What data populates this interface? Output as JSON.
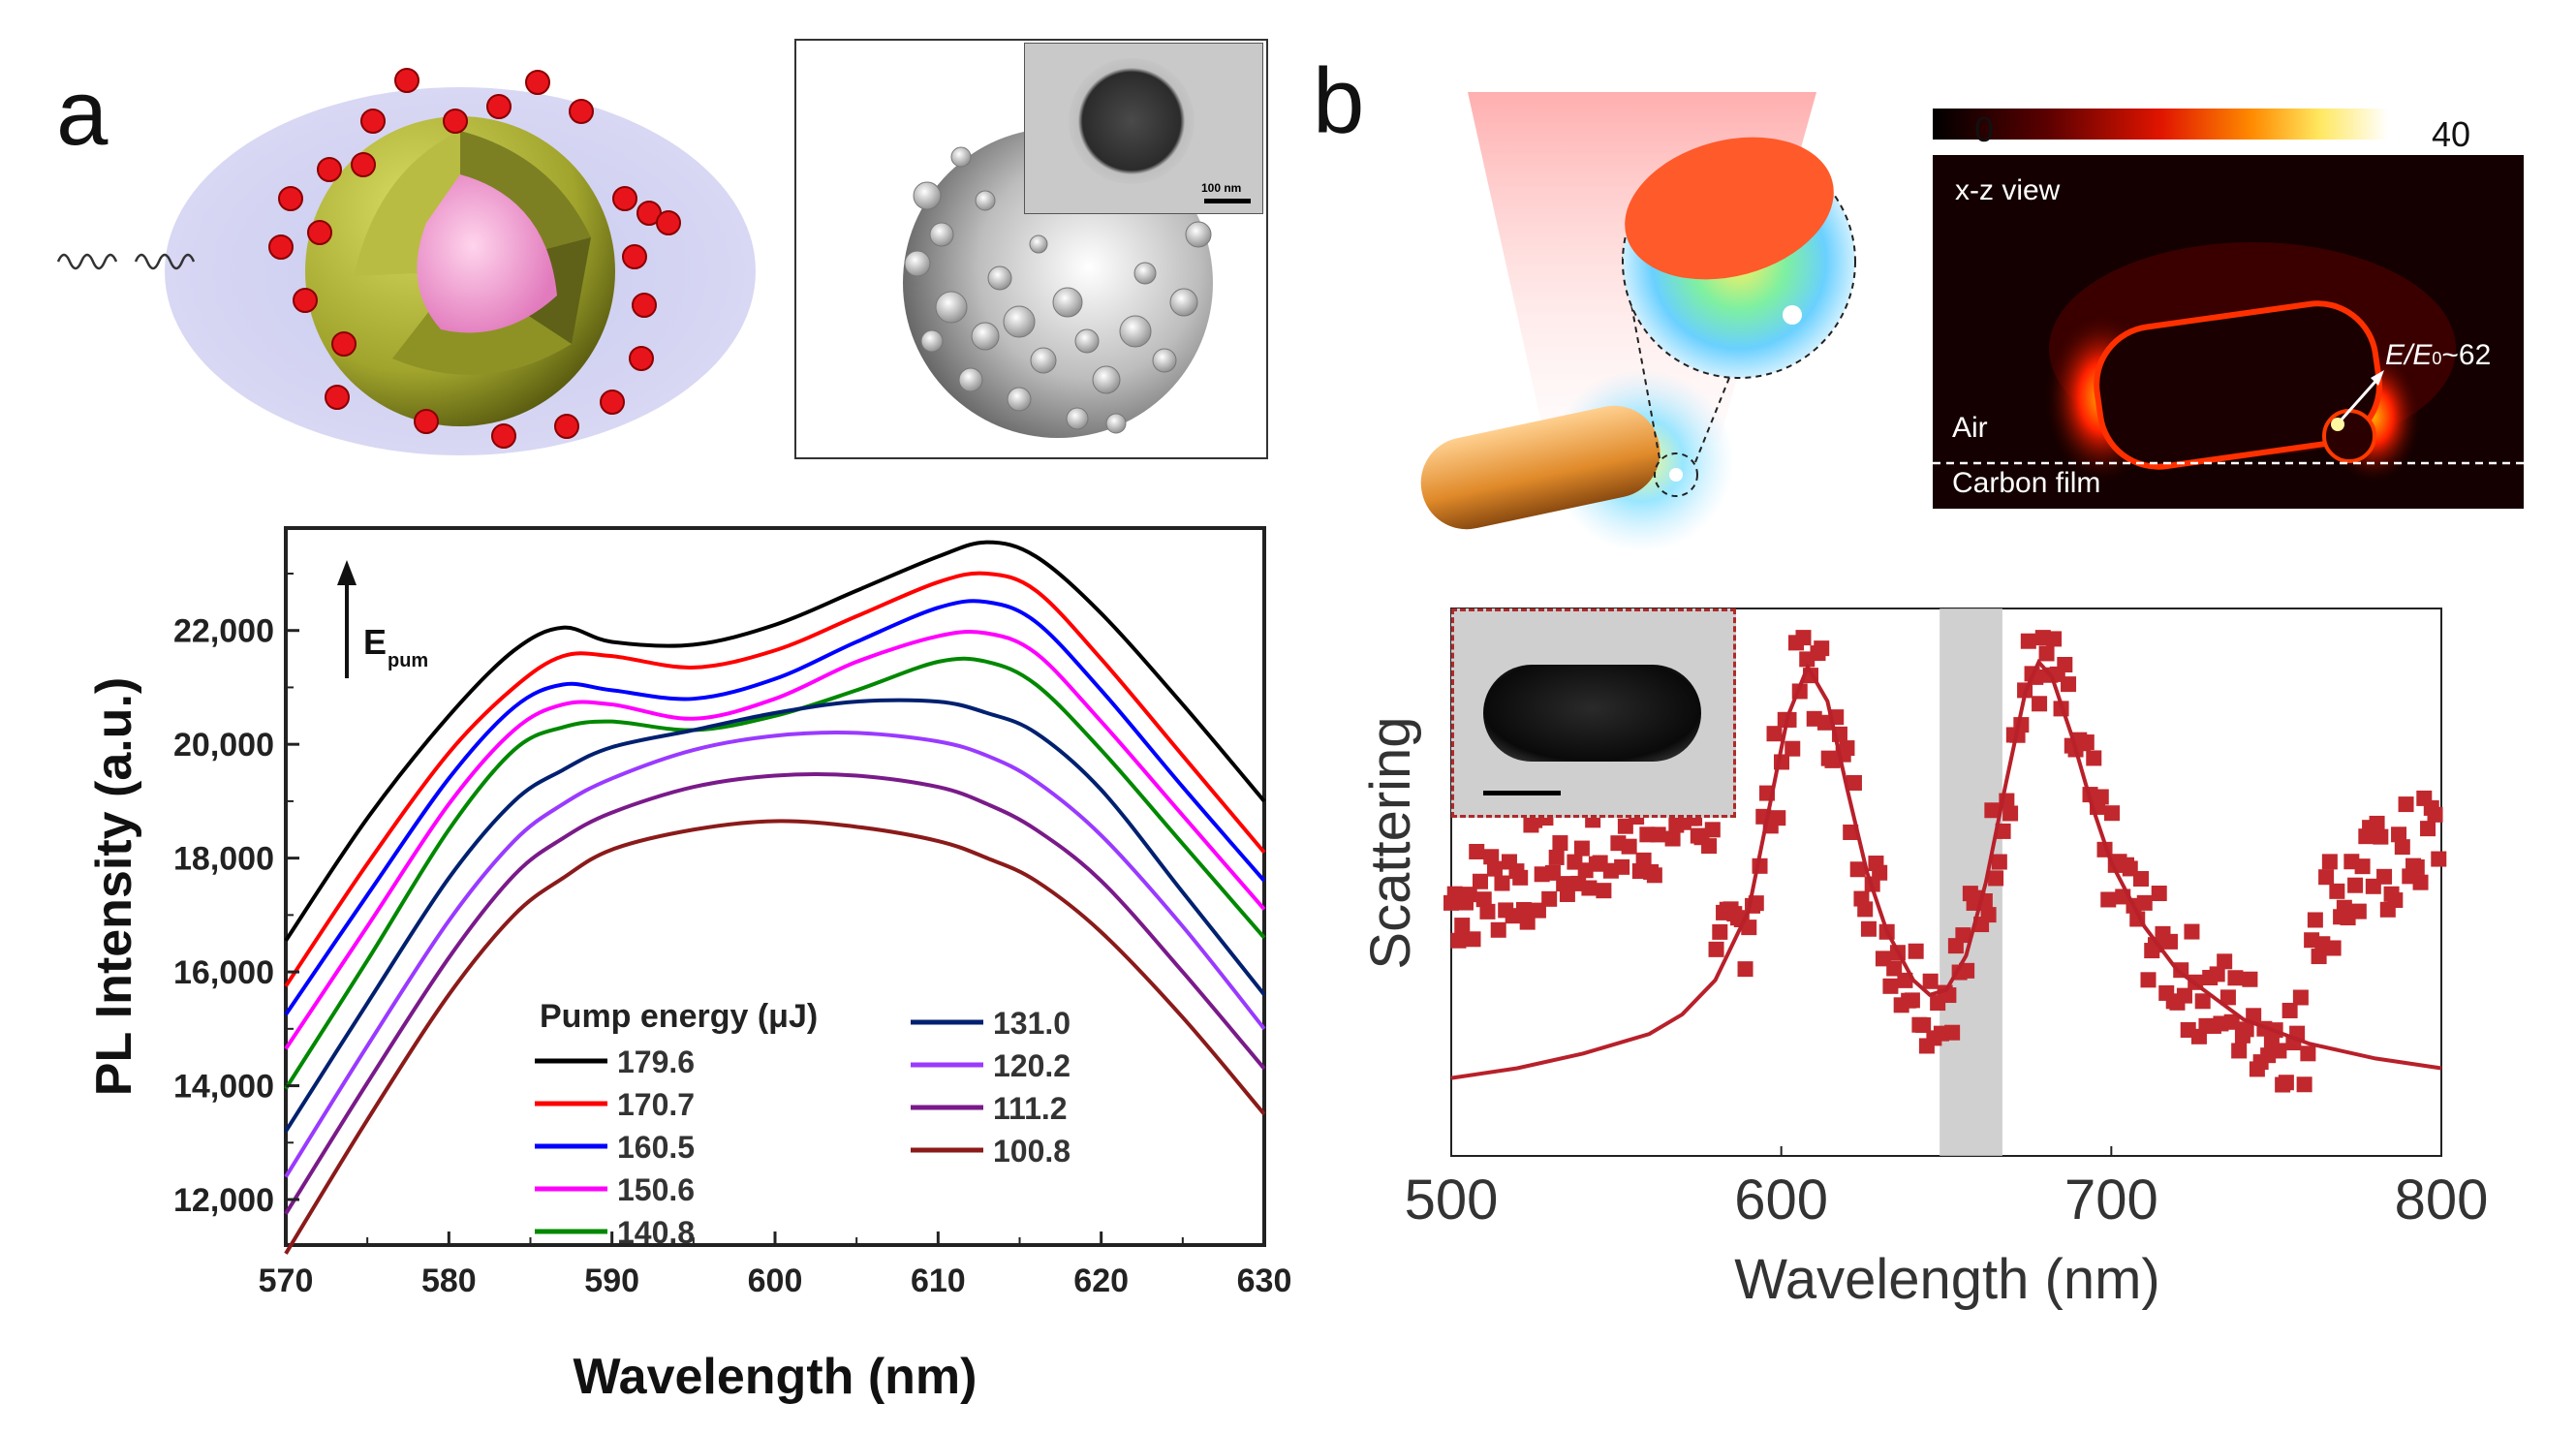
{
  "panels": {
    "a": {
      "letter": "a"
    },
    "b": {
      "letter": "b"
    }
  },
  "panel_a_top": {
    "tem_scale_label": "100 nm"
  },
  "panel_b_top": {
    "colorbar_min": "0",
    "colorbar_max": "40",
    "view_label": "x-z view",
    "field_label": "E/E",
    "field_subscript": "0",
    "field_value": "~62",
    "air_label": "Air",
    "film_label": "Carbon film",
    "colors": {
      "hot": "#ff3b00",
      "dark": "#1a0000"
    }
  },
  "chart_data": [
    {
      "type": "line",
      "xlabel": "Wavelength (nm)",
      "ylabel": "PL Intensity (a.u.)",
      "xlim": [
        570,
        630
      ],
      "ylim": [
        11200,
        23800
      ],
      "xticks": [
        "570",
        "580",
        "590",
        "600",
        "610",
        "620",
        "630"
      ],
      "xtick_values": [
        570,
        580,
        590,
        600,
        610,
        620,
        630
      ],
      "yticks": [
        "12,000",
        "14,000",
        "16,000",
        "18,000",
        "20,000",
        "22,000"
      ],
      "ytick_values": [
        12000,
        14000,
        16000,
        18000,
        20000,
        22000
      ],
      "arrow_label": "E",
      "arrow_label_sub": "pum",
      "legend_title": "Pump energy (μJ)",
      "x": [
        570,
        575,
        580,
        584,
        587,
        590,
        595,
        600,
        605,
        610,
        613,
        616,
        620,
        625,
        630
      ],
      "series": [
        {
          "name": "179.6",
          "color": "#000000",
          "values": [
            16550,
            18700,
            20500,
            21650,
            22050,
            21800,
            21750,
            22100,
            22700,
            23300,
            23550,
            23300,
            22300,
            20700,
            19000
          ]
        },
        {
          "name": "170.7",
          "color": "#ff0000",
          "values": [
            15750,
            17900,
            19850,
            21000,
            21550,
            21550,
            21350,
            21650,
            22250,
            22850,
            23000,
            22700,
            21500,
            19800,
            18100
          ]
        },
        {
          "name": "160.5",
          "color": "#0000ff",
          "values": [
            15250,
            17350,
            19400,
            20650,
            21050,
            20950,
            20800,
            21150,
            21800,
            22400,
            22500,
            22150,
            20950,
            19250,
            17600
          ]
        },
        {
          "name": "150.6",
          "color": "#ff00ff",
          "values": [
            14650,
            16800,
            18950,
            20250,
            20700,
            20700,
            20450,
            20800,
            21450,
            21900,
            21950,
            21600,
            20400,
            18750,
            17100
          ]
        },
        {
          "name": "140.8",
          "color": "#008800",
          "values": [
            13950,
            16200,
            18500,
            19900,
            20300,
            20400,
            20250,
            20500,
            20950,
            21450,
            21450,
            21050,
            19900,
            18250,
            16600
          ]
        },
        {
          "name": "131.0",
          "color": "#002070",
          "values": [
            13200,
            15450,
            17650,
            19000,
            19550,
            19950,
            20250,
            20550,
            20750,
            20750,
            20550,
            20200,
            19200,
            17400,
            15600
          ]
        },
        {
          "name": "120.2",
          "color": "#9a3aff",
          "values": [
            12400,
            14700,
            16900,
            18300,
            18950,
            19400,
            19900,
            20150,
            20200,
            20050,
            19800,
            19350,
            18400,
            16800,
            15000
          ]
        },
        {
          "name": "111.2",
          "color": "#7a1a8a",
          "values": [
            11750,
            14050,
            16250,
            17700,
            18350,
            18800,
            19250,
            19450,
            19450,
            19250,
            18950,
            18500,
            17600,
            16000,
            14300
          ]
        },
        {
          "name": "100.8",
          "color": "#8b1a1a",
          "values": [
            11050,
            13400,
            15600,
            17000,
            17650,
            18150,
            18500,
            18650,
            18550,
            18300,
            18000,
            17600,
            16700,
            15200,
            13500
          ]
        }
      ]
    },
    {
      "type": "scatter",
      "xlabel": "Wavelength (nm)",
      "ylabel": "Scattering",
      "xlim": [
        500,
        800
      ],
      "ylim": [
        0,
        1
      ],
      "xticks": [
        "500",
        "600",
        "700",
        "800"
      ],
      "xtick_values": [
        500,
        600,
        700,
        800
      ],
      "highlight_band": [
        648,
        667
      ],
      "fit_x": [
        500,
        520,
        540,
        560,
        570,
        580,
        590,
        596,
        602,
        608,
        614,
        620,
        626,
        632,
        640,
        645,
        650,
        656,
        662,
        668,
        674,
        678,
        682,
        688,
        694,
        700,
        710,
        720,
        740,
        760,
        780,
        800
      ],
      "fit_y": [
        0.08,
        0.1,
        0.13,
        0.17,
        0.21,
        0.28,
        0.42,
        0.62,
        0.82,
        0.92,
        0.85,
        0.67,
        0.5,
        0.38,
        0.28,
        0.25,
        0.26,
        0.33,
        0.48,
        0.68,
        0.87,
        0.93,
        0.9,
        0.78,
        0.64,
        0.52,
        0.39,
        0.3,
        0.2,
        0.15,
        0.12,
        0.1
      ],
      "marker_color": "#c0282d",
      "inset": "nanorod TEM image"
    }
  ]
}
